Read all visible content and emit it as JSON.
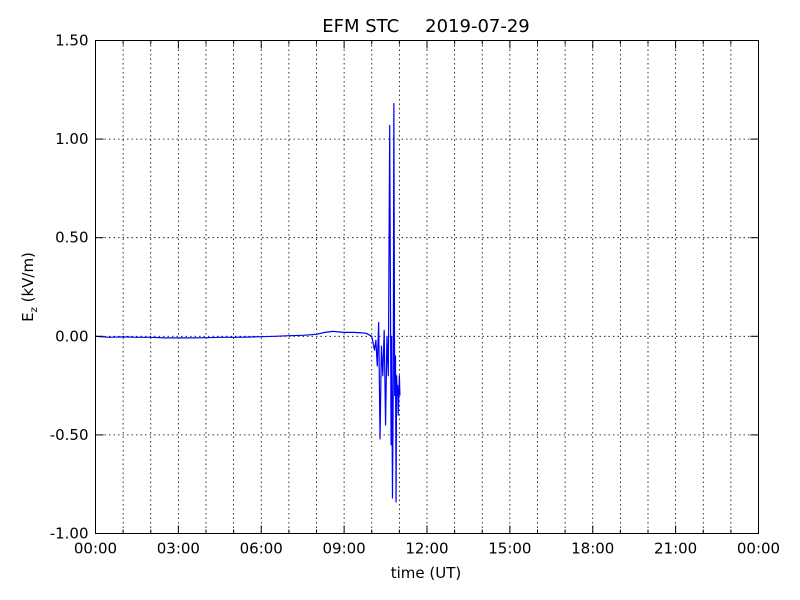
{
  "chart_data": {
    "type": "line",
    "title": "EFM STC",
    "title_date": "2019-07-29",
    "xlabel": "time (UT)",
    "ylabel_main": "E",
    "ylabel_sub": "z",
    "ylabel_unit": " (kV/m)",
    "x_unit": "hours",
    "xlim": [
      0,
      24
    ],
    "ylim": [
      -1.0,
      1.5
    ],
    "x_ticks": [
      0,
      3,
      6,
      9,
      12,
      15,
      18,
      21,
      24
    ],
    "x_tick_labels": [
      "00:00",
      "03:00",
      "06:00",
      "09:00",
      "12:00",
      "15:00",
      "18:00",
      "21:00",
      "00:00"
    ],
    "x_minor_step_hours": 1,
    "y_ticks": [
      -1.0,
      -0.5,
      0.0,
      0.5,
      1.0,
      1.5
    ],
    "y_tick_labels": [
      "-1.00",
      "-0.50",
      "0.00",
      "0.50",
      "1.00",
      "1.50"
    ],
    "grid": true,
    "series": [
      {
        "color": "#0000ff",
        "x": [
          0.0,
          0.5,
          1.0,
          1.5,
          2.0,
          2.5,
          3.0,
          3.5,
          4.0,
          4.5,
          5.0,
          5.5,
          6.0,
          6.5,
          7.0,
          7.5,
          8.0,
          8.3,
          8.6,
          9.0,
          9.3,
          9.6,
          9.8,
          10.0,
          10.1,
          10.15,
          10.2,
          10.25,
          10.3,
          10.35,
          10.4,
          10.45,
          10.5,
          10.55,
          10.6,
          10.65,
          10.7,
          10.72,
          10.75,
          10.78,
          10.8,
          10.83,
          10.86,
          10.88,
          10.9,
          10.92,
          10.94,
          10.96,
          10.98,
          11.0,
          11.02
        ],
        "y": [
          0.0,
          -0.005,
          -0.003,
          -0.005,
          -0.005,
          -0.008,
          -0.008,
          -0.008,
          -0.007,
          -0.005,
          -0.005,
          -0.004,
          -0.002,
          0.0,
          0.003,
          0.005,
          0.01,
          0.02,
          0.025,
          0.02,
          0.02,
          0.018,
          0.015,
          0.0,
          -0.07,
          -0.02,
          -0.15,
          0.07,
          -0.52,
          -0.05,
          -0.2,
          0.03,
          -0.45,
          0.0,
          -0.2,
          1.07,
          -0.55,
          0.0,
          -0.82,
          -0.2,
          1.18,
          -0.3,
          -0.1,
          -0.84,
          -0.2,
          -0.3,
          -0.25,
          -0.4,
          -0.3,
          -0.2,
          -0.3
        ]
      }
    ]
  }
}
